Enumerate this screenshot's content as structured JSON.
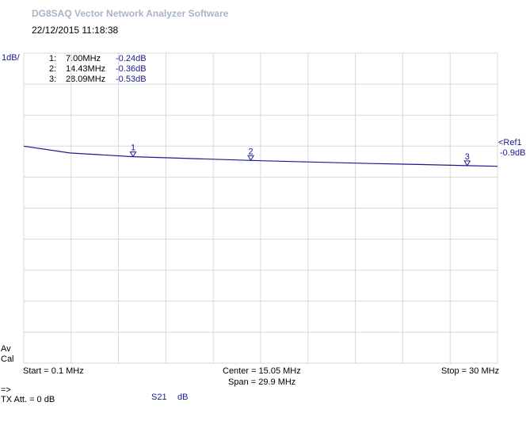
{
  "app": {
    "title": "DG8SAQ Vector Network Analyzer Software",
    "datetime": "22/12/2015    11:18:38"
  },
  "markers": [
    {
      "num": "1:",
      "freq": "7.00MHz",
      "value": "-0.24dB"
    },
    {
      "num": "2:",
      "freq": "14.43MHz",
      "value": "-0.36dB"
    },
    {
      "num": "3:",
      "freq": "28.09MHz",
      "value": "-0.53dB"
    }
  ],
  "status": {
    "av": "Av",
    "cal": "Cal",
    "arrow": "=>",
    "tx_att": "TX Att.  = 0 dB"
  },
  "trace": {
    "id": "S21",
    "unit": "dB",
    "color": "#1a1a8c"
  },
  "chart_data": {
    "type": "line",
    "ylabel": "1dB/",
    "x_unit": "MHz",
    "xlim": [
      0.1,
      30
    ],
    "ylim": [
      -6.9,
      3.1
    ],
    "ref_label": "<Ref1",
    "ref_value_label": "-0.9dB",
    "ref_value": -0.9,
    "start_label": "Start = 0.1 MHz",
    "center_label": "Center = 15.05 MHz",
    "span_label": "Span = 29.9 MHz",
    "stop_label": "Stop = 30 MHz",
    "grid": true,
    "series": [
      {
        "x": [
          0.1,
          3,
          7.0,
          10,
          14.43,
          18,
          22,
          25,
          28.09,
          30
        ],
        "y": [
          0.1,
          -0.12,
          -0.24,
          -0.29,
          -0.36,
          -0.41,
          -0.46,
          -0.49,
          -0.53,
          -0.55
        ]
      }
    ],
    "marker_points": [
      {
        "label": "1",
        "x": 7.0,
        "y": -0.24
      },
      {
        "label": "2",
        "x": 14.43,
        "y": -0.36
      },
      {
        "label": "3",
        "x": 28.09,
        "y": -0.53
      }
    ]
  }
}
